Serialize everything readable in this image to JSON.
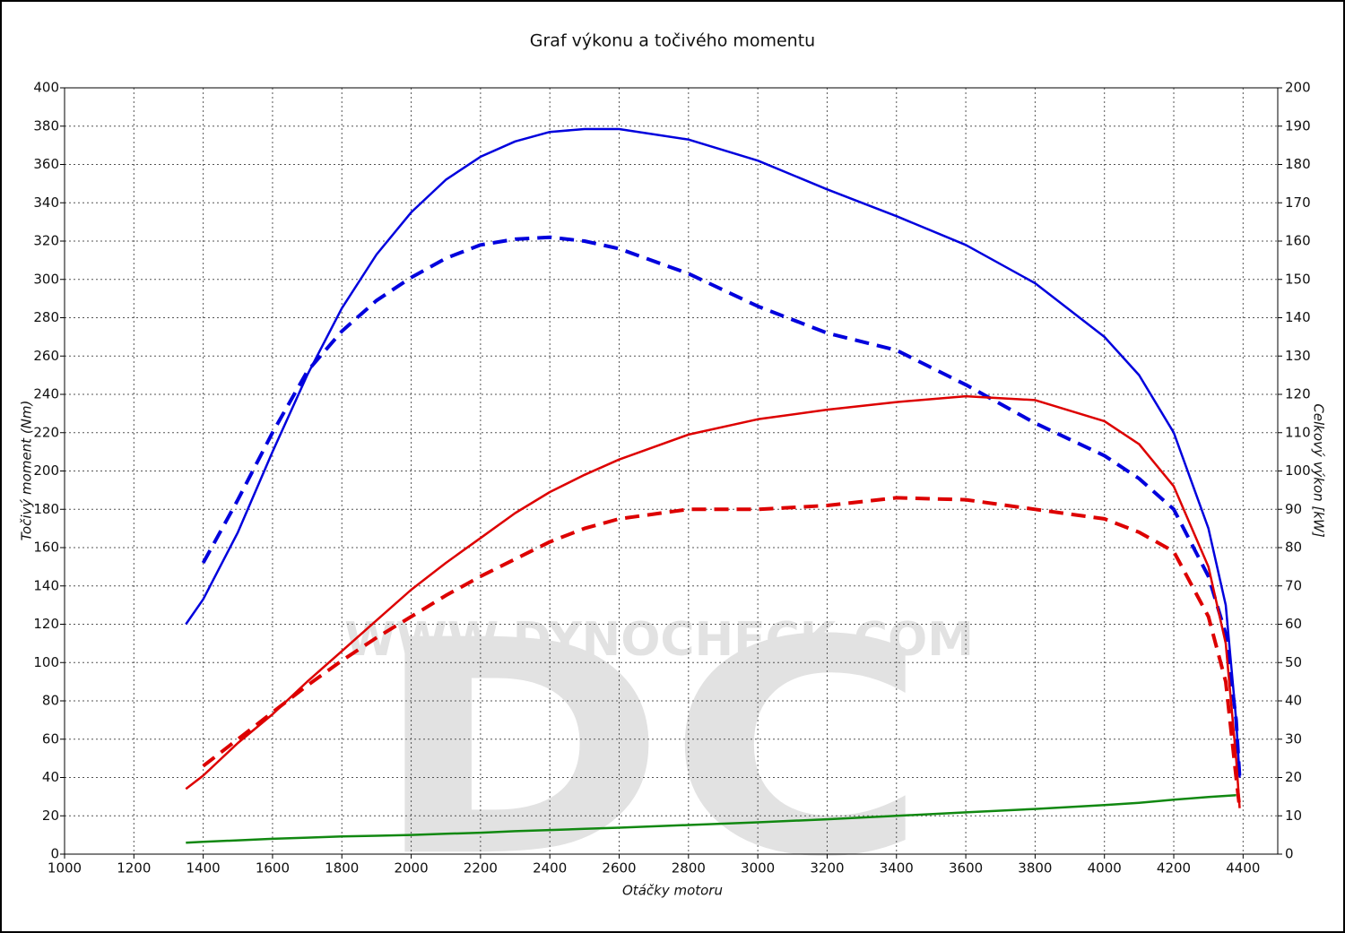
{
  "chart_data": {
    "type": "line",
    "title": "Graf výkonu a točivého momentu",
    "x_label": "Otáčky motoru",
    "y_label": "Točivý moment (Nm)",
    "y2_label": "Celkový výkon [kW]",
    "watermark": {
      "logo": "DC",
      "url": "WWW.DYNOCHECK.COM"
    },
    "grid": true,
    "xlim": [
      1000,
      4500
    ],
    "xticks": [
      1000,
      1200,
      1400,
      1600,
      1800,
      2000,
      2200,
      2400,
      2600,
      2800,
      3000,
      3200,
      3400,
      3600,
      3800,
      4000,
      4200,
      4400
    ],
    "ylim": [
      0,
      400
    ],
    "yticks": [
      0,
      20,
      40,
      60,
      80,
      100,
      120,
      140,
      160,
      180,
      200,
      220,
      240,
      260,
      280,
      300,
      320,
      340,
      360,
      380,
      400
    ],
    "y2lim": [
      0,
      200
    ],
    "y2ticks": [
      0,
      10,
      20,
      30,
      40,
      50,
      60,
      70,
      80,
      90,
      100,
      110,
      120,
      130,
      140,
      150,
      160,
      170,
      180,
      190,
      200
    ],
    "x": [
      1350,
      1400,
      1500,
      1600,
      1700,
      1800,
      1900,
      2000,
      2100,
      2200,
      2300,
      2400,
      2500,
      2600,
      2800,
      3000,
      3200,
      3400,
      3600,
      3800,
      4000,
      4100,
      4200,
      4300,
      4350,
      4380,
      4390
    ],
    "series": [
      {
        "color": "#0000dd",
        "dashed": false,
        "values": [
          120,
          133,
          168,
          210,
          250,
          285,
          313,
          335,
          352,
          364,
          372,
          377,
          378.5,
          378.5,
          373,
          362,
          347,
          333,
          318,
          298,
          270,
          250,
          220,
          170,
          130,
          70,
          40
        ]
      },
      {
        "color": "#0000dd",
        "dashed": true,
        "values": [
          null,
          152,
          185,
          220,
          252,
          273,
          289,
          301,
          311,
          318,
          321,
          322,
          320,
          316,
          303,
          286,
          272,
          263,
          245,
          225,
          208,
          196,
          180,
          145,
          115,
          70,
          40
        ]
      },
      {
        "color": "#dd0000",
        "dashed": false,
        "axis": "y2",
        "values": [
          17,
          20.5,
          29,
          36.5,
          45,
          53,
          61,
          69,
          76,
          82.5,
          89,
          94.5,
          99,
          103,
          109.5,
          113.5,
          116,
          118,
          119.5,
          118.5,
          113,
          107,
          96,
          75,
          55,
          25,
          12
        ]
      },
      {
        "color": "#dd0000",
        "dashed": true,
        "axis": "y2",
        "values": [
          null,
          23,
          30,
          37,
          44,
          50.5,
          56.5,
          62,
          67.5,
          72.5,
          77,
          81.5,
          85,
          87.5,
          90,
          90,
          91,
          93,
          92.5,
          90,
          87.5,
          84,
          79,
          62,
          45,
          20,
          12
        ]
      },
      {
        "color": "#118811",
        "dashed": false,
        "axis": "y2",
        "values": [
          3,
          3.2,
          3.6,
          4,
          4.3,
          4.6,
          4.8,
          5,
          5.3,
          5.6,
          6,
          6.3,
          6.6,
          6.9,
          7.6,
          8.3,
          9.1,
          10,
          10.9,
          11.8,
          12.8,
          13.4,
          14.2,
          14.9,
          15.2,
          15.4,
          null
        ]
      }
    ]
  }
}
